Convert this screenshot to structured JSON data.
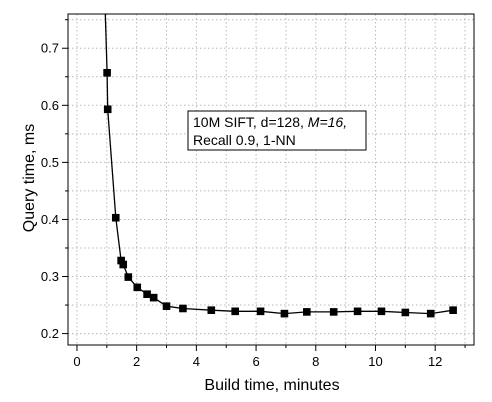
{
  "chart_data": {
    "type": "line",
    "title": "",
    "xlabel": "Build time, minutes",
    "ylabel": "Query time, ms",
    "xlim": [
      -0.3,
      13.3
    ],
    "ylim": [
      0.18,
      0.76
    ],
    "xticks": [
      0,
      2,
      4,
      6,
      8,
      10,
      12
    ],
    "yticks": [
      0.2,
      0.3,
      0.4,
      0.5,
      0.6,
      0.7
    ],
    "grid": true,
    "legend": "none",
    "annotation": {
      "line1_plain": "10M SIFT, d=128, ",
      "line1_italic": "M=16,",
      "line2": "Recall 0.9, 1-NN"
    },
    "line_color": "#000000",
    "marker_color": "#000000",
    "series": [
      {
        "x": [
          1.01,
          1.03,
          1.3,
          1.48,
          1.55,
          1.72,
          2.02,
          2.35,
          2.57,
          3.0,
          3.55,
          4.5,
          5.3,
          6.15,
          6.95,
          7.7,
          8.6,
          9.4,
          10.2,
          11.0,
          11.85,
          12.6
        ],
        "y": [
          0.657,
          0.593,
          0.403,
          0.328,
          0.321,
          0.299,
          0.281,
          0.269,
          0.263,
          0.248,
          0.244,
          0.241,
          0.239,
          0.239,
          0.235,
          0.238,
          0.238,
          0.239,
          0.239,
          0.237,
          0.235,
          0.241
        ],
        "steep_start": {
          "x": 0.95,
          "y": 0.76
        }
      }
    ]
  }
}
